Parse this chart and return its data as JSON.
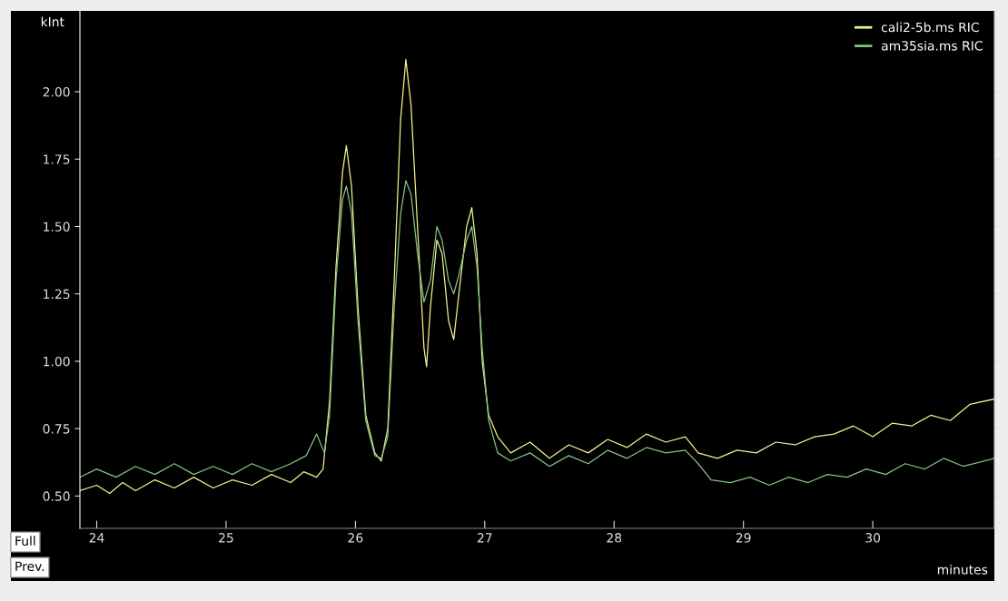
{
  "chart_data": {
    "type": "line",
    "xlabel": "minutes",
    "ylabel": "kInt",
    "annotations": [
      "Full",
      "Prev."
    ],
    "xlim": [
      23.87,
      30.94
    ],
    "ylim": [
      0.38,
      2.3
    ],
    "xticks": [
      24,
      25,
      26,
      27,
      28,
      29,
      30
    ],
    "yticks": [
      {
        "value": 0.5,
        "label": "0.50"
      },
      {
        "value": 0.75,
        "label": "0.75"
      },
      {
        "value": 1.0,
        "label": "1.00"
      },
      {
        "value": 1.25,
        "label": "1.25"
      },
      {
        "value": 1.5,
        "label": "1.50"
      },
      {
        "value": 1.75,
        "label": "1.75"
      },
      {
        "value": 2.0,
        "label": "2.00"
      }
    ],
    "grid": false,
    "legend": "top right",
    "marker": "none",
    "line_style": "solid",
    "series": [
      {
        "name": "cali2-5b.ms RIC",
        "color": "#f2f08c",
        "x": [
          23.87,
          24.0,
          24.1,
          24.2,
          24.3,
          24.45,
          24.6,
          24.75,
          24.9,
          25.05,
          25.2,
          25.35,
          25.5,
          25.6,
          25.7,
          25.75,
          25.8,
          25.85,
          25.9,
          25.93,
          25.97,
          26.02,
          26.08,
          26.15,
          26.2,
          26.25,
          26.3,
          26.35,
          26.39,
          26.43,
          26.48,
          26.53,
          26.55,
          26.58,
          26.63,
          26.67,
          26.72,
          26.76,
          26.8,
          26.86,
          26.9,
          26.94,
          26.98,
          27.03,
          27.1,
          27.2,
          27.35,
          27.5,
          27.65,
          27.8,
          27.95,
          28.1,
          28.25,
          28.4,
          28.55,
          28.65,
          28.8,
          28.95,
          29.1,
          29.25,
          29.4,
          29.55,
          29.7,
          29.85,
          30.0,
          30.15,
          30.3,
          30.45,
          30.6,
          30.75,
          30.94
        ],
        "values": [
          0.52,
          0.54,
          0.51,
          0.55,
          0.52,
          0.56,
          0.53,
          0.57,
          0.53,
          0.56,
          0.54,
          0.58,
          0.55,
          0.59,
          0.57,
          0.6,
          0.85,
          1.35,
          1.7,
          1.8,
          1.65,
          1.2,
          0.8,
          0.66,
          0.63,
          0.75,
          1.3,
          1.9,
          2.12,
          1.95,
          1.5,
          1.05,
          0.98,
          1.2,
          1.45,
          1.4,
          1.15,
          1.08,
          1.25,
          1.5,
          1.57,
          1.4,
          1.0,
          0.8,
          0.72,
          0.66,
          0.7,
          0.64,
          0.69,
          0.66,
          0.71,
          0.68,
          0.73,
          0.7,
          0.72,
          0.66,
          0.64,
          0.67,
          0.66,
          0.7,
          0.69,
          0.72,
          0.73,
          0.76,
          0.72,
          0.77,
          0.76,
          0.8,
          0.78,
          0.84,
          0.86
        ]
      },
      {
        "name": "am35sia.ms RIC",
        "color": "#86c283",
        "x": [
          23.87,
          24.0,
          24.15,
          24.3,
          24.45,
          24.6,
          24.75,
          24.9,
          25.05,
          25.2,
          25.35,
          25.5,
          25.62,
          25.7,
          25.76,
          25.8,
          25.85,
          25.9,
          25.93,
          25.97,
          26.02,
          26.08,
          26.15,
          26.2,
          26.25,
          26.3,
          26.35,
          26.39,
          26.43,
          26.48,
          26.53,
          26.58,
          26.63,
          26.67,
          26.72,
          26.76,
          26.8,
          26.86,
          26.9,
          26.94,
          26.98,
          27.03,
          27.1,
          27.2,
          27.35,
          27.5,
          27.65,
          27.8,
          27.95,
          28.1,
          28.25,
          28.4,
          28.55,
          28.65,
          28.75,
          28.9,
          29.05,
          29.2,
          29.35,
          29.5,
          29.65,
          29.8,
          29.95,
          30.1,
          30.25,
          30.4,
          30.55,
          30.7,
          30.94
        ],
        "values": [
          0.57,
          0.6,
          0.57,
          0.61,
          0.58,
          0.62,
          0.58,
          0.61,
          0.58,
          0.62,
          0.59,
          0.62,
          0.65,
          0.73,
          0.66,
          0.8,
          1.3,
          1.6,
          1.65,
          1.55,
          1.15,
          0.78,
          0.65,
          0.64,
          0.72,
          1.2,
          1.55,
          1.67,
          1.62,
          1.4,
          1.22,
          1.3,
          1.5,
          1.45,
          1.3,
          1.25,
          1.32,
          1.45,
          1.5,
          1.35,
          1.05,
          0.78,
          0.66,
          0.63,
          0.66,
          0.61,
          0.65,
          0.62,
          0.67,
          0.64,
          0.68,
          0.66,
          0.67,
          0.62,
          0.56,
          0.55,
          0.57,
          0.54,
          0.57,
          0.55,
          0.58,
          0.57,
          0.6,
          0.58,
          0.62,
          0.6,
          0.64,
          0.61,
          0.64
        ]
      }
    ]
  }
}
